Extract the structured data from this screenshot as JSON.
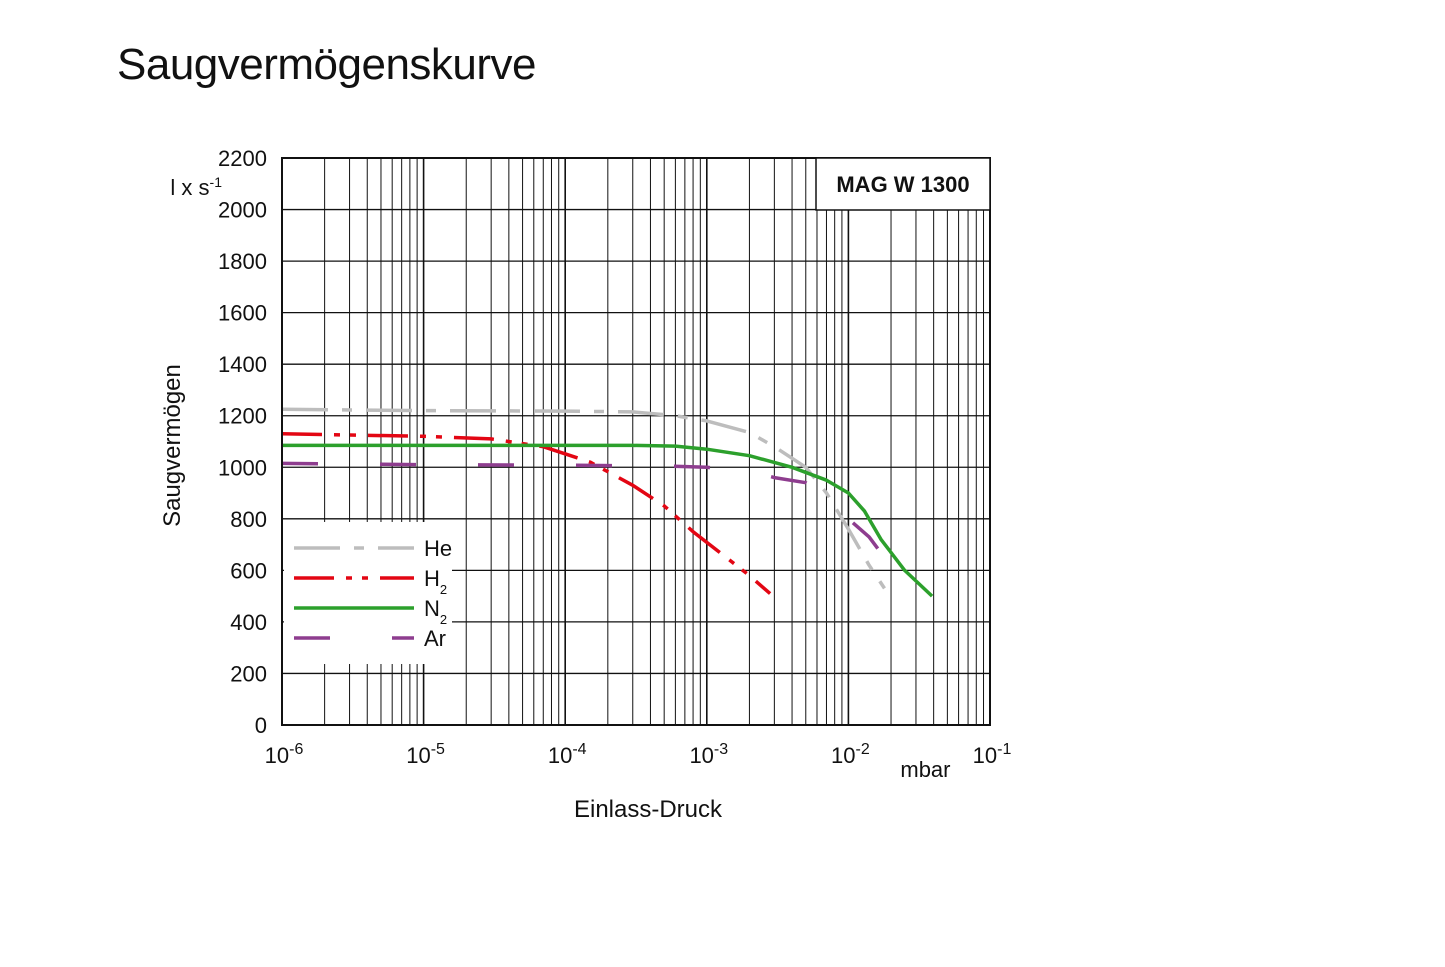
{
  "title": "Saugvermögenskurve",
  "chart_data": {
    "type": "line",
    "model_label": "MAG W 1300",
    "xlabel": "Einlass-Druck",
    "x_unit": "mbar",
    "ylabel": "Saugvermögen",
    "y_unit": "l x s-1",
    "x_scale": "log",
    "xlim": [
      1e-06,
      0.1
    ],
    "ylim": [
      0,
      2200
    ],
    "x_ticks": [
      {
        "base": "10",
        "exp": "-6"
      },
      {
        "base": "10",
        "exp": "-5"
      },
      {
        "base": "10",
        "exp": "-4"
      },
      {
        "base": "10",
        "exp": "-3"
      },
      {
        "base": "10",
        "exp": "-2"
      },
      {
        "base": "10",
        "exp": "-1"
      }
    ],
    "y_ticks": [
      "0",
      "200",
      "400",
      "600",
      "800",
      "1000",
      "1200",
      "1400",
      "1600",
      "1800",
      "2000",
      "2200"
    ],
    "grid": true,
    "legend_position": "bottom-left",
    "series": [
      {
        "name": "He",
        "subscript": "",
        "color": "#bdbdbd",
        "dash": "dashdot",
        "points": [
          [
            1e-06,
            1225
          ],
          [
            1e-05,
            1220
          ],
          [
            0.0001,
            1218
          ],
          [
            0.0003,
            1215
          ],
          [
            0.0006,
            1200
          ],
          [
            0.001,
            1180
          ],
          [
            0.002,
            1135
          ],
          [
            0.003,
            1080
          ],
          [
            0.005,
            1000
          ],
          [
            0.007,
            900
          ],
          [
            0.01,
            760
          ],
          [
            0.014,
            620
          ],
          [
            0.018,
            530
          ]
        ]
      },
      {
        "name": "H",
        "subscript": "2",
        "color": "#e30613",
        "dash": "dashdotdot",
        "points": [
          [
            1e-06,
            1130
          ],
          [
            1e-05,
            1120
          ],
          [
            3e-05,
            1110
          ],
          [
            7e-05,
            1080
          ],
          [
            0.00015,
            1020
          ],
          [
            0.0003,
            930
          ],
          [
            0.0005,
            850
          ],
          [
            0.0008,
            750
          ],
          [
            0.0013,
            660
          ],
          [
            0.002,
            580
          ],
          [
            0.0028,
            510
          ]
        ]
      },
      {
        "name": "N",
        "subscript": "2",
        "color": "#2ca02c",
        "dash": "solid",
        "points": [
          [
            1e-06,
            1085
          ],
          [
            1e-05,
            1085
          ],
          [
            0.0001,
            1085
          ],
          [
            0.0003,
            1085
          ],
          [
            0.0006,
            1082
          ],
          [
            0.001,
            1070
          ],
          [
            0.002,
            1045
          ],
          [
            0.004,
            1000
          ],
          [
            0.007,
            950
          ],
          [
            0.01,
            900
          ],
          [
            0.013,
            830
          ],
          [
            0.017,
            720
          ],
          [
            0.025,
            600
          ],
          [
            0.039,
            500
          ]
        ]
      },
      {
        "name": "Ar",
        "subscript": "",
        "color": "#8e3d8f",
        "dash": "longdash",
        "points": [
          [
            1e-06,
            1015
          ],
          [
            1e-05,
            1010
          ],
          [
            0.0001,
            1008
          ],
          [
            0.0005,
            1005
          ],
          [
            0.001,
            1000
          ],
          [
            0.002,
            985
          ],
          [
            0.003,
            960
          ],
          [
            0.005,
            940
          ],
          [
            0.008,
            870
          ],
          [
            0.01,
            800
          ],
          [
            0.014,
            730
          ],
          [
            0.021,
            600
          ]
        ]
      }
    ]
  }
}
